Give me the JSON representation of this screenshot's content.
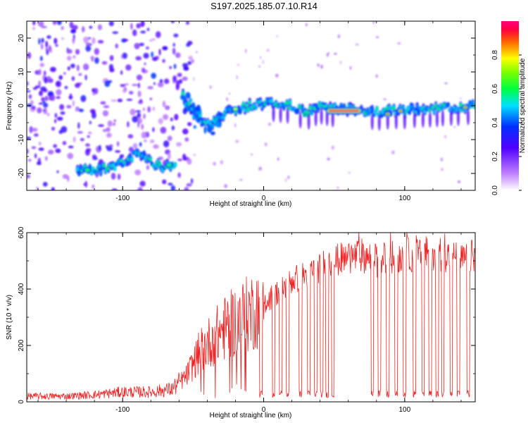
{
  "title": "S197.2025.185.07.10.R14",
  "chart_data": [
    {
      "type": "heatmap",
      "xlabel": "Height of straight line (km)",
      "ylabel": "Frequency (Hz)",
      "colorbar_label": "Normalized spectral amplitude",
      "xlim": [
        -168,
        150
      ],
      "ylim": [
        -25,
        25
      ],
      "xticks": [
        -100,
        0,
        100
      ],
      "yticks": [
        -20,
        -10,
        0,
        10,
        20
      ],
      "colorbar_ticks": [
        "0.0",
        "0.2",
        "0.4",
        "0.6",
        "0.8"
      ],
      "colorbar_range": [
        0,
        1
      ],
      "colormap": [
        "#ffffff",
        "#a000ff",
        "#0000ff",
        "#00c8ff",
        "#00ff00",
        "#ffff00",
        "#ff0000",
        "#ff00ff"
      ],
      "ridge": {
        "x": [
          -125,
          -110,
          -100,
          -90,
          -80,
          -70,
          -62,
          -58,
          -50,
          -40,
          -30,
          -20,
          -10,
          0,
          10,
          20,
          30,
          40,
          50,
          60,
          70,
          80,
          90,
          100,
          110,
          120,
          130,
          140,
          150
        ],
        "y": [
          -19,
          -18.5,
          -17,
          -14,
          -17,
          -18,
          -17,
          3,
          -2,
          -6,
          -3,
          -1,
          0,
          1,
          0.5,
          0,
          -2,
          0,
          -1,
          -1,
          -1,
          -2,
          -1.5,
          -1.5,
          -1,
          -1,
          -0.5,
          -0.5,
          0
        ]
      },
      "peak_segments": [
        {
          "x": [
            46,
            68
          ],
          "y": -1.5,
          "level": 1.0
        },
        {
          "x": 88,
          "y": -2.5,
          "level": 0.95
        },
        {
          "x": 97,
          "y": -1.5,
          "level": 0.9
        },
        {
          "x": 143,
          "y": -0.5,
          "level": 0.9
        },
        {
          "x": -20,
          "y": -1,
          "level": 0.75
        },
        {
          "x": -125,
          "y": -19,
          "level": 0.6
        },
        {
          "x": -67,
          "y": -17.5,
          "level": 0.55
        }
      ]
    },
    {
      "type": "line",
      "xlabel": "Height of straight line (km)",
      "ylabel": "SNR (10 * v/v)",
      "xlim": [
        -168,
        150
      ],
      "ylim": [
        0,
        600
      ],
      "xticks": [
        -100,
        0,
        100
      ],
      "yticks": [
        0,
        200,
        400,
        600
      ],
      "color": "#ee2222",
      "envelope": {
        "x": [
          -168,
          -140,
          -120,
          -100,
          -80,
          -65,
          -55,
          -45,
          -35,
          -25,
          -15,
          -5,
          0,
          10,
          20,
          30,
          40,
          50,
          60,
          70,
          80,
          90,
          100,
          110,
          120,
          130,
          140,
          150
        ],
        "y": [
          20,
          20,
          25,
          35,
          35,
          45,
          90,
          180,
          230,
          270,
          300,
          330,
          350,
          390,
          430,
          450,
          480,
          500,
          510,
          520,
          500,
          510,
          520,
          520,
          530,
          520,
          500,
          520
        ]
      },
      "dropouts": [
        [
          -3,
          -1
        ],
        [
          6,
          8
        ],
        [
          11,
          13
        ],
        [
          16,
          18
        ],
        [
          25,
          27
        ],
        [
          31,
          33
        ],
        [
          36,
          38
        ],
        [
          40,
          42
        ],
        [
          44,
          46
        ],
        [
          48,
          50
        ],
        [
          76,
          78
        ],
        [
          81,
          83
        ],
        [
          87,
          89
        ],
        [
          93,
          95
        ],
        [
          99,
          101
        ],
        [
          106,
          108
        ],
        [
          112,
          114
        ],
        [
          117,
          119
        ],
        [
          122,
          124
        ],
        [
          126,
          128
        ],
        [
          132,
          134
        ],
        [
          137,
          139
        ],
        [
          144,
          146
        ]
      ]
    }
  ]
}
